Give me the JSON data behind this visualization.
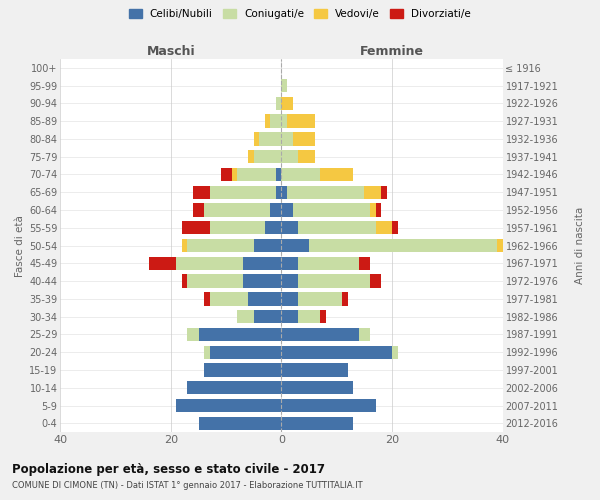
{
  "age_groups": [
    "100+",
    "95-99",
    "90-94",
    "85-89",
    "80-84",
    "75-79",
    "70-74",
    "65-69",
    "60-64",
    "55-59",
    "50-54",
    "45-49",
    "40-44",
    "35-39",
    "30-34",
    "25-29",
    "20-24",
    "15-19",
    "10-14",
    "5-9",
    "0-4"
  ],
  "birth_years": [
    "≤ 1916",
    "1917-1921",
    "1922-1926",
    "1927-1931",
    "1932-1936",
    "1937-1941",
    "1942-1946",
    "1947-1951",
    "1952-1956",
    "1957-1961",
    "1962-1966",
    "1967-1971",
    "1972-1976",
    "1977-1981",
    "1982-1986",
    "1987-1991",
    "1992-1996",
    "1997-2001",
    "2002-2006",
    "2007-2011",
    "2012-2016"
  ],
  "maschi": {
    "celibi": [
      0,
      0,
      0,
      0,
      0,
      0,
      1,
      1,
      2,
      3,
      5,
      7,
      7,
      6,
      5,
      15,
      13,
      14,
      17,
      19,
      15
    ],
    "coniugati": [
      0,
      0,
      1,
      2,
      4,
      5,
      7,
      12,
      12,
      10,
      12,
      12,
      10,
      7,
      3,
      2,
      1,
      0,
      0,
      0,
      0
    ],
    "vedovi": [
      0,
      0,
      0,
      1,
      1,
      1,
      1,
      0,
      0,
      0,
      1,
      0,
      0,
      0,
      0,
      0,
      0,
      0,
      0,
      0,
      0
    ],
    "divorziati": [
      0,
      0,
      0,
      0,
      0,
      0,
      2,
      3,
      2,
      5,
      0,
      5,
      1,
      1,
      0,
      0,
      0,
      0,
      0,
      0,
      0
    ]
  },
  "femmine": {
    "nubili": [
      0,
      0,
      0,
      0,
      0,
      0,
      0,
      1,
      2,
      3,
      5,
      3,
      3,
      3,
      3,
      14,
      20,
      12,
      13,
      17,
      13
    ],
    "coniugate": [
      0,
      1,
      0,
      1,
      2,
      3,
      7,
      14,
      14,
      14,
      34,
      11,
      13,
      8,
      4,
      2,
      1,
      0,
      0,
      0,
      0
    ],
    "vedove": [
      0,
      0,
      2,
      5,
      4,
      3,
      6,
      3,
      1,
      3,
      2,
      0,
      0,
      0,
      0,
      0,
      0,
      0,
      0,
      0,
      0
    ],
    "divorziate": [
      0,
      0,
      0,
      0,
      0,
      0,
      0,
      1,
      1,
      1,
      1,
      2,
      2,
      1,
      1,
      0,
      0,
      0,
      0,
      0,
      0
    ]
  },
  "colors": {
    "celibi": "#4472a8",
    "coniugati": "#c8dda4",
    "vedovi": "#f5c842",
    "divorziati": "#cc1a14"
  },
  "xlim": 40,
  "title": "Popolazione per età, sesso e stato civile - 2017",
  "subtitle": "COMUNE DI CIMONE (TN) - Dati ISTAT 1° gennaio 2017 - Elaborazione TUTTITALIA.IT",
  "ylabel_left": "Fasce di età",
  "ylabel_right": "Anni di nascita",
  "xlabel_left": "Maschi",
  "xlabel_right": "Femmine",
  "legend_labels": [
    "Celibi/Nubili",
    "Coniugati/e",
    "Vedovi/e",
    "Divorziati/e"
  ],
  "background_color": "#f0f0f0",
  "plot_bg": "#ffffff"
}
